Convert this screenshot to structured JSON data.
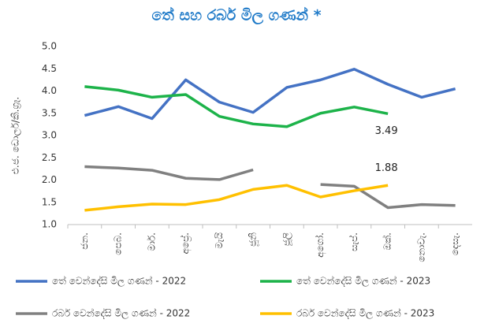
{
  "chart_data": {
    "type": "line",
    "title": "තේ සහ රබර් මිල ගණන් *",
    "y_label": "එ.ජ. ඩොලර්/කි.ග්‍රෑ.",
    "categories": [
      "ජන.",
      "පෙබ.",
      "මාර්.",
      "අප්‍රේ.",
      "මැයි",
      "ජූනි",
      "ජූලි",
      "අගෝ.",
      "සැප්.",
      "ඔක්.",
      "නොවැ.",
      "දෙසැ."
    ],
    "series": [
      {
        "name": "තේ වෙන්දේසි මිල ගණන් - 2022",
        "color": "#4472c4",
        "values": [
          3.45,
          3.65,
          3.38,
          4.25,
          3.75,
          3.52,
          4.08,
          4.25,
          4.49,
          4.15,
          3.86,
          4.05
        ]
      },
      {
        "name": "තේ වෙන්දේසි මිල ගණන් - 2023",
        "color": "#1db34a",
        "values": [
          4.1,
          4.02,
          3.86,
          3.92,
          3.43,
          3.26,
          3.2,
          3.5,
          3.64,
          3.49,
          null,
          null
        ],
        "show_last_label": true
      },
      {
        "name": "රබර් වෙන්දේසි මිල ගණන් - 2022",
        "color": "#808080",
        "values": [
          2.3,
          2.27,
          2.22,
          2.04,
          2.01,
          2.23,
          null,
          1.9,
          1.86,
          1.38,
          1.45,
          1.43
        ]
      },
      {
        "name": "රබර් වෙන්දේසි මිල ගණන් - 2023",
        "color": "#ffc000",
        "values": [
          1.32,
          1.4,
          1.46,
          1.45,
          1.56,
          1.79,
          1.88,
          1.62,
          1.76,
          1.88,
          null,
          null
        ],
        "show_last_label": true
      }
    ],
    "ylim": [
      1.0,
      5.0
    ],
    "yticks": [
      {
        "value": 1.0,
        "label": "1.0"
      },
      1.5,
      {
        "value": 2.0,
        "label": "2.0"
      },
      2.5,
      {
        "value": 3.0,
        "label": "3.0"
      },
      3.5,
      {
        "value": 4.0,
        "label": "4.0"
      },
      4.5,
      {
        "value": 5.0,
        "label": "5.0"
      }
    ],
    "grid": false
  }
}
